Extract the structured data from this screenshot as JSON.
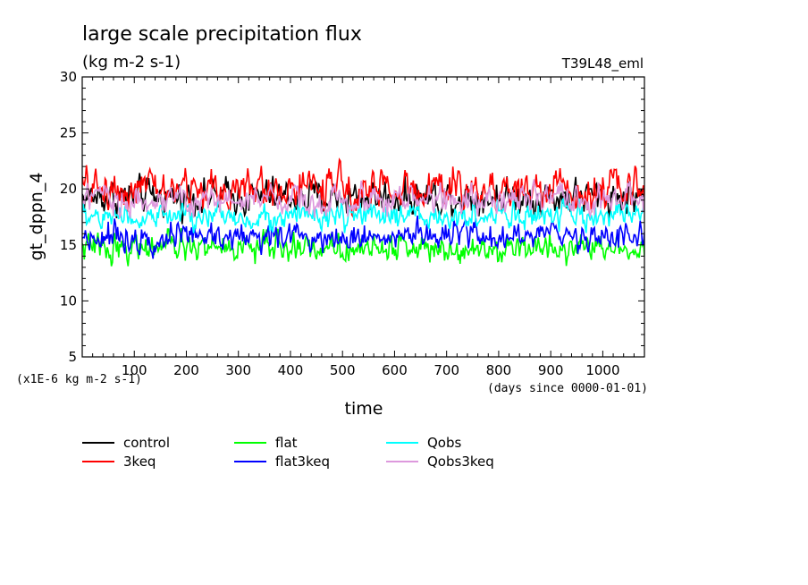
{
  "chart_data": {
    "type": "line",
    "title": "large scale precipitation flux",
    "subtitle": "(kg m-2 s-1)",
    "tag": "T39L48_eml",
    "xlabel": "time",
    "x_unit_note": "(days since 0000-01-01)",
    "ylabel": "gt_dppn_4",
    "y_unit_note": "(x1E-6 kg m-2 s-1)",
    "xlim": [
      0,
      1080
    ],
    "ylim": [
      5,
      30
    ],
    "x_ticks": [
      "100",
      "200",
      "300",
      "400",
      "500",
      "600",
      "700",
      "800",
      "900",
      "1000"
    ],
    "y_ticks": [
      "5",
      "10",
      "15",
      "20",
      "25",
      "30"
    ],
    "grid": false,
    "legend_position": "bottom",
    "series": [
      {
        "name": "control",
        "color": "#000000",
        "mean": 19.3,
        "amplitude": 1.6,
        "x_start": 0,
        "x_end": 1080,
        "x_step": 2
      },
      {
        "name": "3keq",
        "color": "#ff0000",
        "mean": 20.0,
        "amplitude": 1.8,
        "x_start": 0,
        "x_end": 1080,
        "x_step": 2
      },
      {
        "name": "flat",
        "color": "#00ff00",
        "mean": 14.8,
        "amplitude": 1.3,
        "x_start": 0,
        "x_end": 1080,
        "x_step": 2
      },
      {
        "name": "flat3keq",
        "color": "#0000ff",
        "mean": 15.8,
        "amplitude": 1.3,
        "x_start": 0,
        "x_end": 1080,
        "x_step": 2
      },
      {
        "name": "Qobs",
        "color": "#00ffff",
        "mean": 17.5,
        "amplitude": 1.2,
        "x_start": 0,
        "x_end": 1080,
        "x_step": 2
      },
      {
        "name": "Qobs3keq",
        "color": "#dd99dd",
        "mean": 19.0,
        "amplitude": 1.4,
        "x_start": 0,
        "x_end": 1080,
        "x_step": 2
      }
    ]
  }
}
